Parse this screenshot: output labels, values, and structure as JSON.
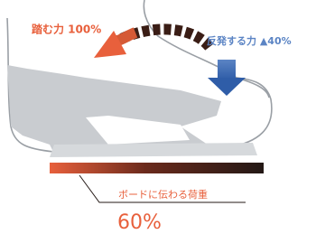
{
  "labels": {
    "push_force": "踏む力 100%",
    "rebound_force": "反発する力 ▲40%",
    "board_load_label": "ボードに伝わる荷重",
    "board_load_value": "60%"
  }
}
